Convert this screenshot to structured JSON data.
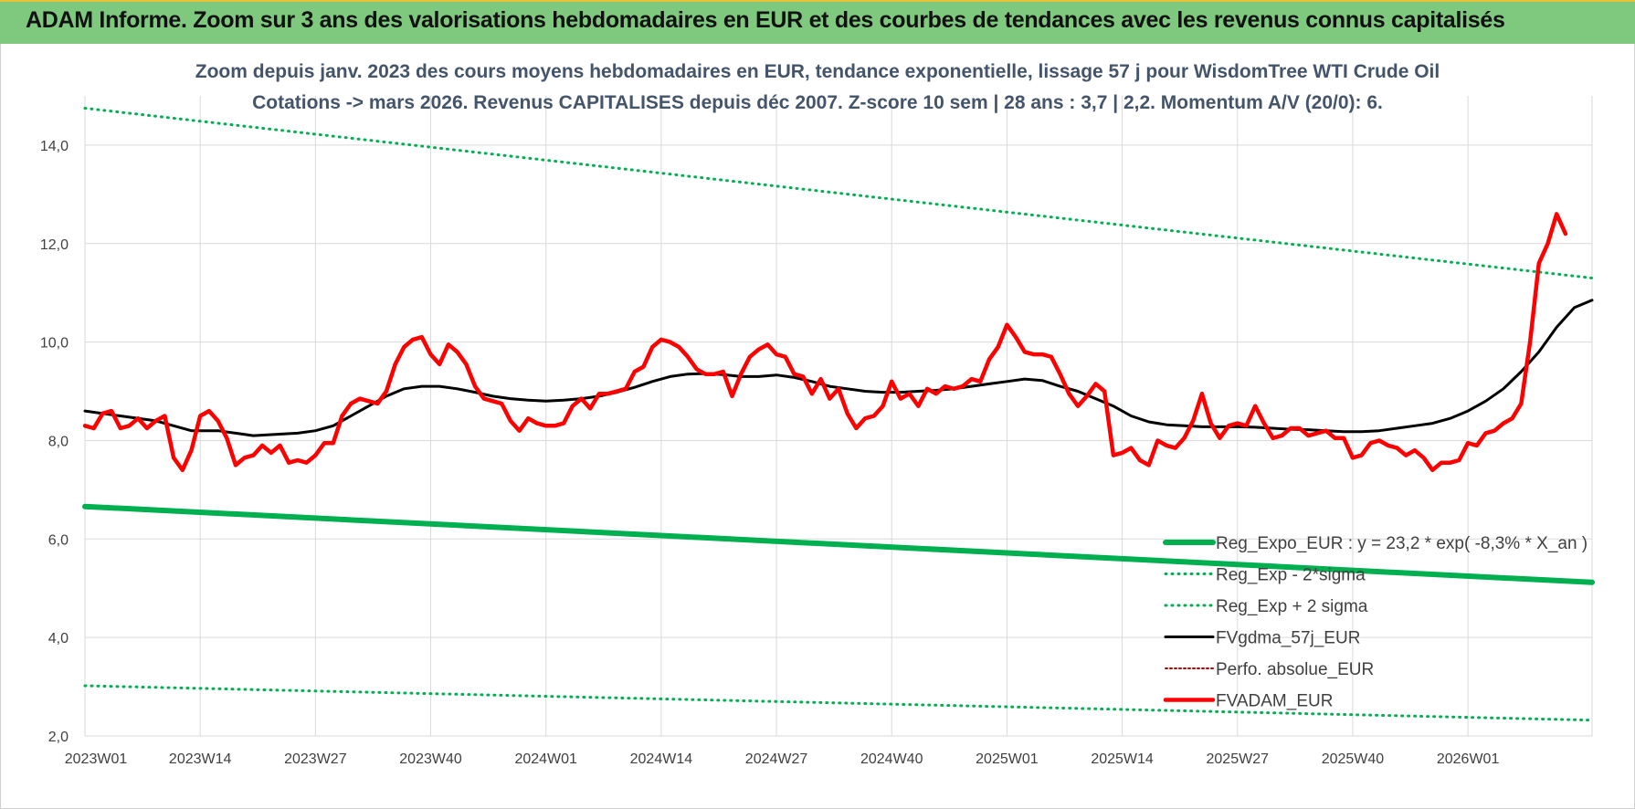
{
  "banner": {
    "text": "ADAM Informe. Zoom sur 3 ans des valorisations hebdomadaires en EUR et des courbes de tendances avec les revenus connus capitalisés"
  },
  "colors": {
    "banner_bg": "#7fc97f",
    "reg_expo": "#00b050",
    "sigma": "#00b050",
    "fvgdma": "#000000",
    "perfo": "#c00000",
    "fvadam": "#ff0000",
    "grid": "#d9d9d9",
    "title": "#44546a"
  },
  "chart_data": {
    "type": "line",
    "title": "Zoom depuis janv. 2023 des cours moyens hebdomadaires en EUR, tendance exponentielle, lissage 57 j pour WisdomTree WTI Crude Oil",
    "subtitle": "Cotations -> mars 2026. Revenus CAPITALISES depuis déc 2007. Z-score 10 sem | 28 ans : 3,7 | 2,2. Momentum A/V (20/0): 6.",
    "ylim": [
      2,
      15
    ],
    "y_ticks": [
      "2,0",
      "4,0",
      "6,0",
      "8,0",
      "10,0",
      "12,0",
      "14,0"
    ],
    "y_tick_values": [
      2,
      4,
      6,
      8,
      10,
      12,
      14
    ],
    "x_ticks": [
      "2023W01",
      "2023W14",
      "2023W27",
      "2023W40",
      "2024W01",
      "2024W14",
      "2024W27",
      "2024W40",
      "2025W01",
      "2025W14",
      "2025W27",
      "2025W40",
      "2026W01"
    ],
    "x_tick_weeks": [
      0,
      13,
      26,
      39,
      52,
      65,
      78,
      91,
      104,
      117,
      130,
      143,
      156
    ],
    "x_range_weeks": [
      0,
      170
    ],
    "grid": true,
    "legend_position": "bottom-right",
    "series": [
      {
        "name": "Reg_Expo_EUR : y = 23,2 * exp( -8,3% * X_an )",
        "style": "thick-solid",
        "color": "#00b050",
        "points": [
          [
            0,
            6.66
          ],
          [
            170,
            5.12
          ]
        ]
      },
      {
        "name": "Reg_Exp - 2*sigma",
        "style": "dotted",
        "color": "#00b050",
        "points": [
          [
            0,
            3.02
          ],
          [
            170,
            2.32
          ]
        ]
      },
      {
        "name": "Reg_Exp + 2 sigma",
        "style": "dotted",
        "color": "#00b050",
        "points": [
          [
            0,
            14.75
          ],
          [
            170,
            11.3
          ]
        ]
      },
      {
        "name": "FVgdma_57j_EUR",
        "style": "solid",
        "color": "#000000",
        "points": [
          [
            0,
            8.6
          ],
          [
            4,
            8.5
          ],
          [
            8,
            8.4
          ],
          [
            10,
            8.3
          ],
          [
            12,
            8.2
          ],
          [
            15,
            8.2
          ],
          [
            17,
            8.15
          ],
          [
            19,
            8.1
          ],
          [
            21,
            8.12
          ],
          [
            24,
            8.15
          ],
          [
            26,
            8.2
          ],
          [
            28,
            8.3
          ],
          [
            30,
            8.5
          ],
          [
            32,
            8.7
          ],
          [
            34,
            8.9
          ],
          [
            36,
            9.05
          ],
          [
            38,
            9.1
          ],
          [
            40,
            9.1
          ],
          [
            42,
            9.05
          ],
          [
            44,
            8.98
          ],
          [
            46,
            8.9
          ],
          [
            48,
            8.85
          ],
          [
            50,
            8.82
          ],
          [
            52,
            8.8
          ],
          [
            54,
            8.82
          ],
          [
            56,
            8.85
          ],
          [
            58,
            8.9
          ],
          [
            60,
            8.98
          ],
          [
            62,
            9.08
          ],
          [
            64,
            9.2
          ],
          [
            66,
            9.3
          ],
          [
            68,
            9.35
          ],
          [
            70,
            9.36
          ],
          [
            72,
            9.34
          ],
          [
            74,
            9.3
          ],
          [
            76,
            9.3
          ],
          [
            78,
            9.33
          ],
          [
            80,
            9.28
          ],
          [
            82,
            9.2
          ],
          [
            84,
            9.1
          ],
          [
            86,
            9.05
          ],
          [
            88,
            9.0
          ],
          [
            90,
            8.98
          ],
          [
            92,
            8.98
          ],
          [
            94,
            9.0
          ],
          [
            96,
            9.02
          ],
          [
            98,
            9.05
          ],
          [
            100,
            9.1
          ],
          [
            102,
            9.15
          ],
          [
            104,
            9.2
          ],
          [
            106,
            9.25
          ],
          [
            108,
            9.22
          ],
          [
            110,
            9.1
          ],
          [
            112,
            9.0
          ],
          [
            114,
            8.85
          ],
          [
            116,
            8.7
          ],
          [
            118,
            8.5
          ],
          [
            120,
            8.38
          ],
          [
            122,
            8.32
          ],
          [
            124,
            8.3
          ],
          [
            126,
            8.28
          ],
          [
            128,
            8.28
          ],
          [
            130,
            8.28
          ],
          [
            132,
            8.27
          ],
          [
            134,
            8.25
          ],
          [
            136,
            8.23
          ],
          [
            138,
            8.22
          ],
          [
            140,
            8.2
          ],
          [
            142,
            8.18
          ],
          [
            144,
            8.18
          ],
          [
            146,
            8.2
          ],
          [
            148,
            8.25
          ],
          [
            150,
            8.3
          ],
          [
            152,
            8.35
          ],
          [
            154,
            8.45
          ],
          [
            156,
            8.6
          ],
          [
            158,
            8.8
          ],
          [
            160,
            9.05
          ],
          [
            162,
            9.4
          ],
          [
            164,
            9.8
          ],
          [
            166,
            10.3
          ],
          [
            168,
            10.7
          ],
          [
            170,
            10.85
          ]
        ]
      },
      {
        "name": "Perfo. absolue_EUR",
        "style": "dotted",
        "color": "#c00000",
        "points": []
      },
      {
        "name": "FVADAM_EUR",
        "style": "thick-solid",
        "color": "#ff0000",
        "points": [
          [
            0,
            8.3
          ],
          [
            1,
            8.25
          ],
          [
            2,
            8.55
          ],
          [
            3,
            8.6
          ],
          [
            4,
            8.25
          ],
          [
            5,
            8.3
          ],
          [
            6,
            8.45
          ],
          [
            7,
            8.25
          ],
          [
            8,
            8.4
          ],
          [
            9,
            8.5
          ],
          [
            10,
            7.65
          ],
          [
            11,
            7.4
          ],
          [
            12,
            7.8
          ],
          [
            13,
            8.5
          ],
          [
            14,
            8.6
          ],
          [
            15,
            8.4
          ],
          [
            16,
            8.05
          ],
          [
            17,
            7.5
          ],
          [
            18,
            7.65
          ],
          [
            19,
            7.7
          ],
          [
            20,
            7.9
          ],
          [
            21,
            7.75
          ],
          [
            22,
            7.9
          ],
          [
            23,
            7.55
          ],
          [
            24,
            7.6
          ],
          [
            25,
            7.55
          ],
          [
            26,
            7.7
          ],
          [
            27,
            7.95
          ],
          [
            28,
            7.95
          ],
          [
            29,
            8.5
          ],
          [
            30,
            8.75
          ],
          [
            31,
            8.85
          ],
          [
            32,
            8.8
          ],
          [
            33,
            8.75
          ],
          [
            34,
            9.0
          ],
          [
            35,
            9.55
          ],
          [
            36,
            9.9
          ],
          [
            37,
            10.05
          ],
          [
            38,
            10.1
          ],
          [
            39,
            9.75
          ],
          [
            40,
            9.55
          ],
          [
            41,
            9.95
          ],
          [
            42,
            9.8
          ],
          [
            43,
            9.55
          ],
          [
            44,
            9.1
          ],
          [
            45,
            8.85
          ],
          [
            46,
            8.8
          ],
          [
            47,
            8.75
          ],
          [
            48,
            8.4
          ],
          [
            49,
            8.2
          ],
          [
            50,
            8.45
          ],
          [
            51,
            8.35
          ],
          [
            52,
            8.3
          ],
          [
            53,
            8.3
          ],
          [
            54,
            8.35
          ],
          [
            55,
            8.7
          ],
          [
            56,
            8.85
          ],
          [
            57,
            8.65
          ],
          [
            58,
            8.95
          ],
          [
            59,
            8.95
          ],
          [
            60,
            9.0
          ],
          [
            61,
            9.05
          ],
          [
            62,
            9.4
          ],
          [
            63,
            9.5
          ],
          [
            64,
            9.9
          ],
          [
            65,
            10.05
          ],
          [
            66,
            10.0
          ],
          [
            67,
            9.9
          ],
          [
            68,
            9.7
          ],
          [
            69,
            9.45
          ],
          [
            70,
            9.35
          ],
          [
            71,
            9.35
          ],
          [
            72,
            9.4
          ],
          [
            73,
            8.9
          ],
          [
            74,
            9.35
          ],
          [
            75,
            9.7
          ],
          [
            76,
            9.85
          ],
          [
            77,
            9.95
          ],
          [
            78,
            9.75
          ],
          [
            79,
            9.7
          ],
          [
            80,
            9.35
          ],
          [
            81,
            9.3
          ],
          [
            82,
            8.95
          ],
          [
            83,
            9.25
          ],
          [
            84,
            8.85
          ],
          [
            85,
            9.05
          ],
          [
            86,
            8.55
          ],
          [
            87,
            8.25
          ],
          [
            88,
            8.45
          ],
          [
            89,
            8.5
          ],
          [
            90,
            8.7
          ],
          [
            91,
            9.2
          ],
          [
            92,
            8.85
          ],
          [
            93,
            8.95
          ],
          [
            94,
            8.7
          ],
          [
            95,
            9.05
          ],
          [
            96,
            8.95
          ],
          [
            97,
            9.1
          ],
          [
            98,
            9.05
          ],
          [
            99,
            9.1
          ],
          [
            100,
            9.25
          ],
          [
            101,
            9.2
          ],
          [
            102,
            9.65
          ],
          [
            103,
            9.9
          ],
          [
            104,
            10.35
          ],
          [
            105,
            10.1
          ],
          [
            106,
            9.8
          ],
          [
            107,
            9.75
          ],
          [
            108,
            9.75
          ],
          [
            109,
            9.7
          ],
          [
            110,
            9.35
          ],
          [
            111,
            8.95
          ],
          [
            112,
            8.7
          ],
          [
            113,
            8.9
          ],
          [
            114,
            9.15
          ],
          [
            115,
            9.0
          ],
          [
            116,
            7.7
          ],
          [
            117,
            7.75
          ],
          [
            118,
            7.85
          ],
          [
            119,
            7.6
          ],
          [
            120,
            7.5
          ],
          [
            121,
            8.0
          ],
          [
            122,
            7.9
          ],
          [
            123,
            7.85
          ],
          [
            124,
            8.05
          ],
          [
            125,
            8.4
          ],
          [
            126,
            8.95
          ],
          [
            127,
            8.35
          ],
          [
            128,
            8.05
          ],
          [
            129,
            8.3
          ],
          [
            130,
            8.35
          ],
          [
            131,
            8.3
          ],
          [
            132,
            8.7
          ],
          [
            133,
            8.35
          ],
          [
            134,
            8.05
          ],
          [
            135,
            8.1
          ],
          [
            136,
            8.25
          ],
          [
            137,
            8.25
          ],
          [
            138,
            8.1
          ],
          [
            139,
            8.15
          ],
          [
            140,
            8.2
          ],
          [
            141,
            8.05
          ],
          [
            142,
            8.05
          ],
          [
            143,
            7.65
          ],
          [
            144,
            7.7
          ],
          [
            145,
            7.95
          ],
          [
            146,
            8.0
          ],
          [
            147,
            7.9
          ],
          [
            148,
            7.85
          ],
          [
            149,
            7.7
          ],
          [
            150,
            7.8
          ],
          [
            151,
            7.65
          ],
          [
            152,
            7.4
          ],
          [
            153,
            7.55
          ],
          [
            154,
            7.55
          ],
          [
            155,
            7.6
          ],
          [
            156,
            7.95
          ],
          [
            157,
            7.9
          ],
          [
            158,
            8.15
          ],
          [
            159,
            8.2
          ],
          [
            160,
            8.35
          ],
          [
            161,
            8.45
          ],
          [
            162,
            8.75
          ],
          [
            163,
            10.0
          ],
          [
            164,
            11.6
          ],
          [
            165,
            12.0
          ],
          [
            166,
            12.6
          ],
          [
            167,
            12.2
          ]
        ]
      }
    ]
  }
}
